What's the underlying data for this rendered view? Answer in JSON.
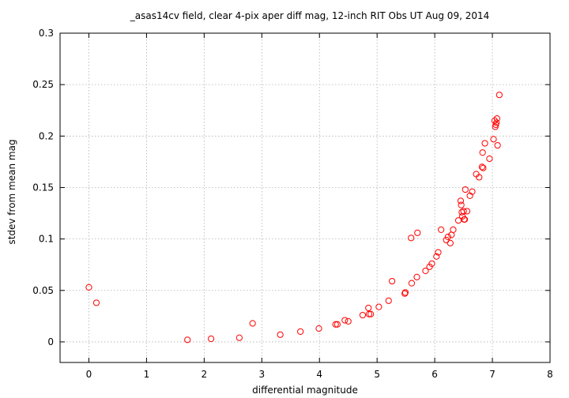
{
  "chart_data": {
    "type": "scatter",
    "title": "_asas14cv field, clear 4-pix aper diff mag,  12-inch RIT Obs UT Aug 09, 2014",
    "xlabel": "differential magnitude",
    "ylabel": "stdev from mean mag",
    "xlim": [
      -0.5,
      8
    ],
    "ylim": [
      -0.02,
      0.3
    ],
    "xticks": [
      "0",
      "1",
      "2",
      "3",
      "4",
      "5",
      "6",
      "7",
      "8"
    ],
    "yticks": [
      "0",
      "0.05",
      "0.1",
      "0.15",
      "0.2",
      "0.25",
      "0.3"
    ],
    "grid": true,
    "marker_color": "#ff0000",
    "series": [
      {
        "x": [
          0.0,
          0.13,
          1.71,
          2.12,
          2.61,
          2.84,
          3.32,
          3.67,
          3.99,
          4.28,
          4.31,
          4.44,
          4.5,
          4.75,
          4.85,
          4.86,
          4.89,
          5.03,
          5.2,
          5.26,
          5.48,
          5.49,
          5.59,
          5.6,
          5.69,
          5.7,
          5.84,
          5.91,
          5.95,
          6.03,
          6.06,
          6.11,
          6.2,
          6.23,
          6.27,
          6.29,
          6.32,
          6.41,
          6.45,
          6.46,
          6.47,
          6.48,
          6.5,
          6.51,
          6.52,
          6.53,
          6.56,
          6.61,
          6.65,
          6.72,
          6.77,
          6.82,
          6.83,
          6.84,
          6.87,
          6.95,
          7.02,
          7.04,
          7.05,
          7.06,
          7.07,
          7.08,
          7.09
        ],
        "y": [
          0.053,
          0.038,
          0.002,
          0.003,
          0.004,
          0.018,
          0.007,
          0.01,
          0.013,
          0.017,
          0.017,
          0.021,
          0.02,
          0.026,
          0.033,
          0.027,
          0.027,
          0.034,
          0.04,
          0.059,
          0.047,
          0.048,
          0.101,
          0.057,
          0.063,
          0.106,
          0.069,
          0.073,
          0.076,
          0.083,
          0.087,
          0.109,
          0.099,
          0.102,
          0.096,
          0.104,
          0.109,
          0.118,
          0.137,
          0.133,
          0.126,
          0.122,
          0.127,
          0.119,
          0.119,
          0.148,
          0.127,
          0.142,
          0.146,
          0.163,
          0.16,
          0.17,
          0.184,
          0.169,
          0.193,
          0.178,
          0.197,
          0.215,
          0.209,
          0.211,
          0.213,
          0.217,
          0.191
        ]
      },
      {
        "x": [
          7.12
        ],
        "y": [
          0.24
        ]
      }
    ]
  }
}
